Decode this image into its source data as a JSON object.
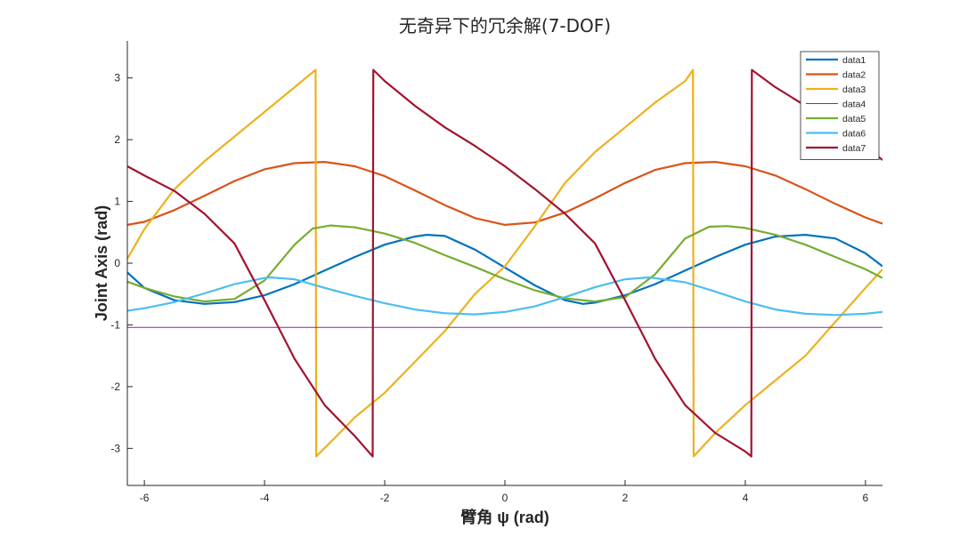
{
  "chart_data": {
    "type": "line",
    "title": "无奇异下的冗余解(7-DOF)",
    "xlabel": "臂角 ψ (rad)",
    "ylabel": "Joint Axis (rad)",
    "xlim": [
      -6.2832,
      6.2832
    ],
    "ylim": [
      -3.6,
      3.6
    ],
    "xticks": [
      -6,
      -4,
      -2,
      0,
      2,
      4,
      6
    ],
    "yticks": [
      -3,
      -2,
      -1,
      0,
      1,
      2,
      3
    ],
    "grid": false,
    "legend_position": "top-right",
    "colors": {
      "data1": "#0072BD",
      "data2": "#D95319",
      "data3": "#EDB120",
      "data4": "#7E2F8E",
      "data5": "#77AC30",
      "data6": "#4DBEEE",
      "data7": "#A2142F"
    },
    "series": [
      {
        "name": "data1",
        "x": [
          -6.2832,
          -6,
          -5.5,
          -5,
          -4.5,
          -4,
          -3.5,
          -3,
          -2.5,
          -2,
          -1.5,
          -1.3,
          -1,
          -0.5,
          0,
          0.5,
          1,
          1.3,
          1.5,
          2,
          2.5,
          3,
          3.5,
          4,
          4.5,
          5,
          5.5,
          6,
          6.2832
        ],
        "y": [
          -0.15,
          -0.4,
          -0.6,
          -0.66,
          -0.63,
          -0.52,
          -0.34,
          -0.12,
          0.1,
          0.3,
          0.43,
          0.46,
          0.44,
          0.22,
          -0.07,
          -0.36,
          -0.6,
          -0.66,
          -0.64,
          -0.52,
          -0.34,
          -0.12,
          0.1,
          0.3,
          0.43,
          0.46,
          0.4,
          0.16,
          -0.05
        ]
      },
      {
        "name": "data2",
        "x": [
          -6.2832,
          -6,
          -5.5,
          -5,
          -4.5,
          -4,
          -3.5,
          -3,
          -2.5,
          -2,
          -1.5,
          -1,
          -0.5,
          0,
          0.5,
          1,
          1.5,
          2,
          2.5,
          3,
          3.5,
          4,
          4.5,
          5,
          5.5,
          6,
          6.2832
        ],
        "y": [
          0.62,
          0.67,
          0.86,
          1.09,
          1.33,
          1.52,
          1.62,
          1.64,
          1.57,
          1.41,
          1.18,
          0.94,
          0.73,
          0.62,
          0.66,
          0.82,
          1.05,
          1.3,
          1.51,
          1.62,
          1.64,
          1.57,
          1.42,
          1.2,
          0.96,
          0.74,
          0.64
        ]
      },
      {
        "name": "data3",
        "x": [
          -6.2832,
          -6,
          -5.5,
          -5,
          -4.5,
          -4,
          -3.5,
          -3.15,
          -3.14,
          -2.8,
          -2.5,
          -2,
          -1.5,
          -1,
          -0.5,
          0,
          0.5,
          1,
          1.5,
          2,
          2.5,
          3,
          3.13,
          3.14,
          3.5,
          4,
          4.5,
          5,
          5.5,
          6,
          6.2832
        ],
        "y": [
          0.07,
          0.55,
          1.2,
          1.65,
          2.05,
          2.45,
          2.85,
          3.13,
          -3.13,
          -2.8,
          -2.5,
          -2.1,
          -1.6,
          -1.1,
          -0.5,
          -0.05,
          0.6,
          1.3,
          1.8,
          2.2,
          2.6,
          2.95,
          3.13,
          -3.13,
          -2.75,
          -2.3,
          -1.9,
          -1.5,
          -0.95,
          -0.4,
          -0.1
        ]
      },
      {
        "name": "data4",
        "x": [
          -6.2832,
          6.2832
        ],
        "y": [
          -1.04,
          -1.04
        ]
      },
      {
        "name": "data5",
        "x": [
          -6.2832,
          -6,
          -5.5,
          -5,
          -4.5,
          -4,
          -3.5,
          -3.2,
          -2.9,
          -2.5,
          -2,
          -1.5,
          -1,
          -0.5,
          0,
          0.5,
          1,
          1.5,
          2,
          2.5,
          3,
          3.4,
          3.7,
          4,
          4.5,
          5,
          5.5,
          6,
          6.2832
        ],
        "y": [
          -0.3,
          -0.4,
          -0.54,
          -0.62,
          -0.58,
          -0.28,
          0.3,
          0.56,
          0.61,
          0.58,
          0.48,
          0.33,
          0.13,
          -0.06,
          -0.26,
          -0.44,
          -0.57,
          -0.62,
          -0.55,
          -0.18,
          0.4,
          0.59,
          0.6,
          0.57,
          0.46,
          0.3,
          0.1,
          -0.1,
          -0.24
        ]
      },
      {
        "name": "data6",
        "x": [
          -6.2832,
          -6,
          -5.5,
          -5,
          -4.5,
          -4,
          -3.9,
          -3.5,
          -3,
          -2.5,
          -2,
          -1.5,
          -1,
          -0.5,
          0,
          0.5,
          1,
          1.5,
          2,
          2.4,
          3,
          3.5,
          4,
          4.5,
          5,
          5.5,
          6,
          6.2832
        ],
        "y": [
          -0.77,
          -0.73,
          -0.63,
          -0.49,
          -0.34,
          -0.24,
          -0.23,
          -0.26,
          -0.4,
          -0.53,
          -0.65,
          -0.75,
          -0.81,
          -0.83,
          -0.79,
          -0.7,
          -0.55,
          -0.39,
          -0.26,
          -0.23,
          -0.31,
          -0.46,
          -0.62,
          -0.75,
          -0.82,
          -0.84,
          -0.82,
          -0.79
        ]
      },
      {
        "name": "data7",
        "x": [
          -6.2832,
          -6,
          -5.5,
          -5,
          -4.5,
          -4,
          -3.5,
          -3,
          -2.5,
          -2.2,
          -2.19,
          -2,
          -1.5,
          -1,
          -0.5,
          0,
          0.5,
          1,
          1.5,
          2,
          2.5,
          3,
          3.5,
          4,
          4.1,
          4.11,
          4.5,
          5,
          5.5,
          6,
          6.2832
        ],
        "y": [
          1.57,
          1.42,
          1.17,
          0.8,
          0.32,
          -0.6,
          -1.55,
          -2.3,
          -2.8,
          -3.13,
          3.13,
          2.95,
          2.55,
          2.2,
          1.9,
          1.57,
          1.2,
          0.8,
          0.32,
          -0.6,
          -1.55,
          -2.3,
          -2.75,
          -3.05,
          -3.13,
          3.13,
          2.85,
          2.55,
          2.2,
          1.9,
          1.67
        ]
      }
    ]
  }
}
